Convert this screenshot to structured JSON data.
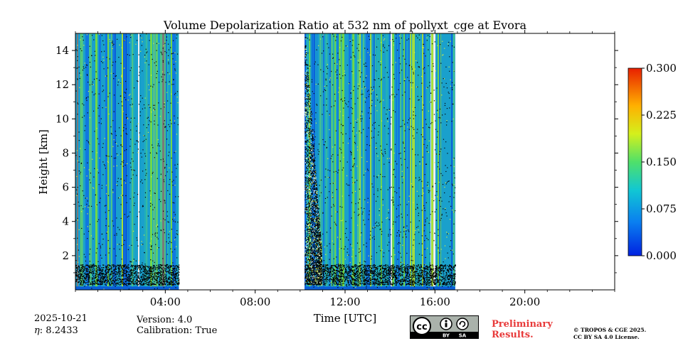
{
  "chart_data": {
    "type": "heatmap",
    "title": "Volume Depolarization Ratio at 532 nm of pollyxt_cge at Evora",
    "xlabel": "Time [UTC]",
    "ylabel": "Height [km]",
    "x_tick_labels": [
      "04:00",
      "08:00",
      "12:00",
      "16:00",
      "20:00"
    ],
    "x_ticks_hours": [
      4,
      8,
      12,
      16,
      20
    ],
    "xlim_hours": [
      0,
      24
    ],
    "y_ticks": [
      2,
      4,
      6,
      8,
      10,
      12,
      14
    ],
    "y_tick_labels": [
      "2",
      "4",
      "6",
      "8",
      "10",
      "12",
      "14"
    ],
    "ylim": [
      0,
      15
    ],
    "colorbar": {
      "min": 0.0,
      "max": 0.3,
      "ticks": [
        0.0,
        0.075,
        0.15,
        0.225,
        0.3
      ],
      "tick_labels": [
        "0.000",
        "0.075",
        "0.150",
        "0.225",
        "0.300"
      ],
      "colormap": "jet"
    },
    "data_segments_hours": [
      [
        0.0,
        4.6
      ],
      [
        10.2,
        16.9
      ]
    ],
    "colors": {
      "low": "#0a5fd8",
      "mid": "#1aa0cc",
      "high": "#6fd84a",
      "noise": "#000000"
    }
  },
  "footer": {
    "date": "2025-10-21",
    "eta_label": "η",
    "eta_value": ": 8.2433",
    "version": "Version: 4.0",
    "calibration": "Calibration: True",
    "preliminary_line1": "Preliminary",
    "preliminary_line2": "Results.",
    "copyright_line1": "© TROPOS & CGE 2025.",
    "copyright_line2": "CC BY SA 4.0 License.",
    "cc_badge": "cc",
    "cc_by": "BY",
    "cc_sa": "SA"
  }
}
